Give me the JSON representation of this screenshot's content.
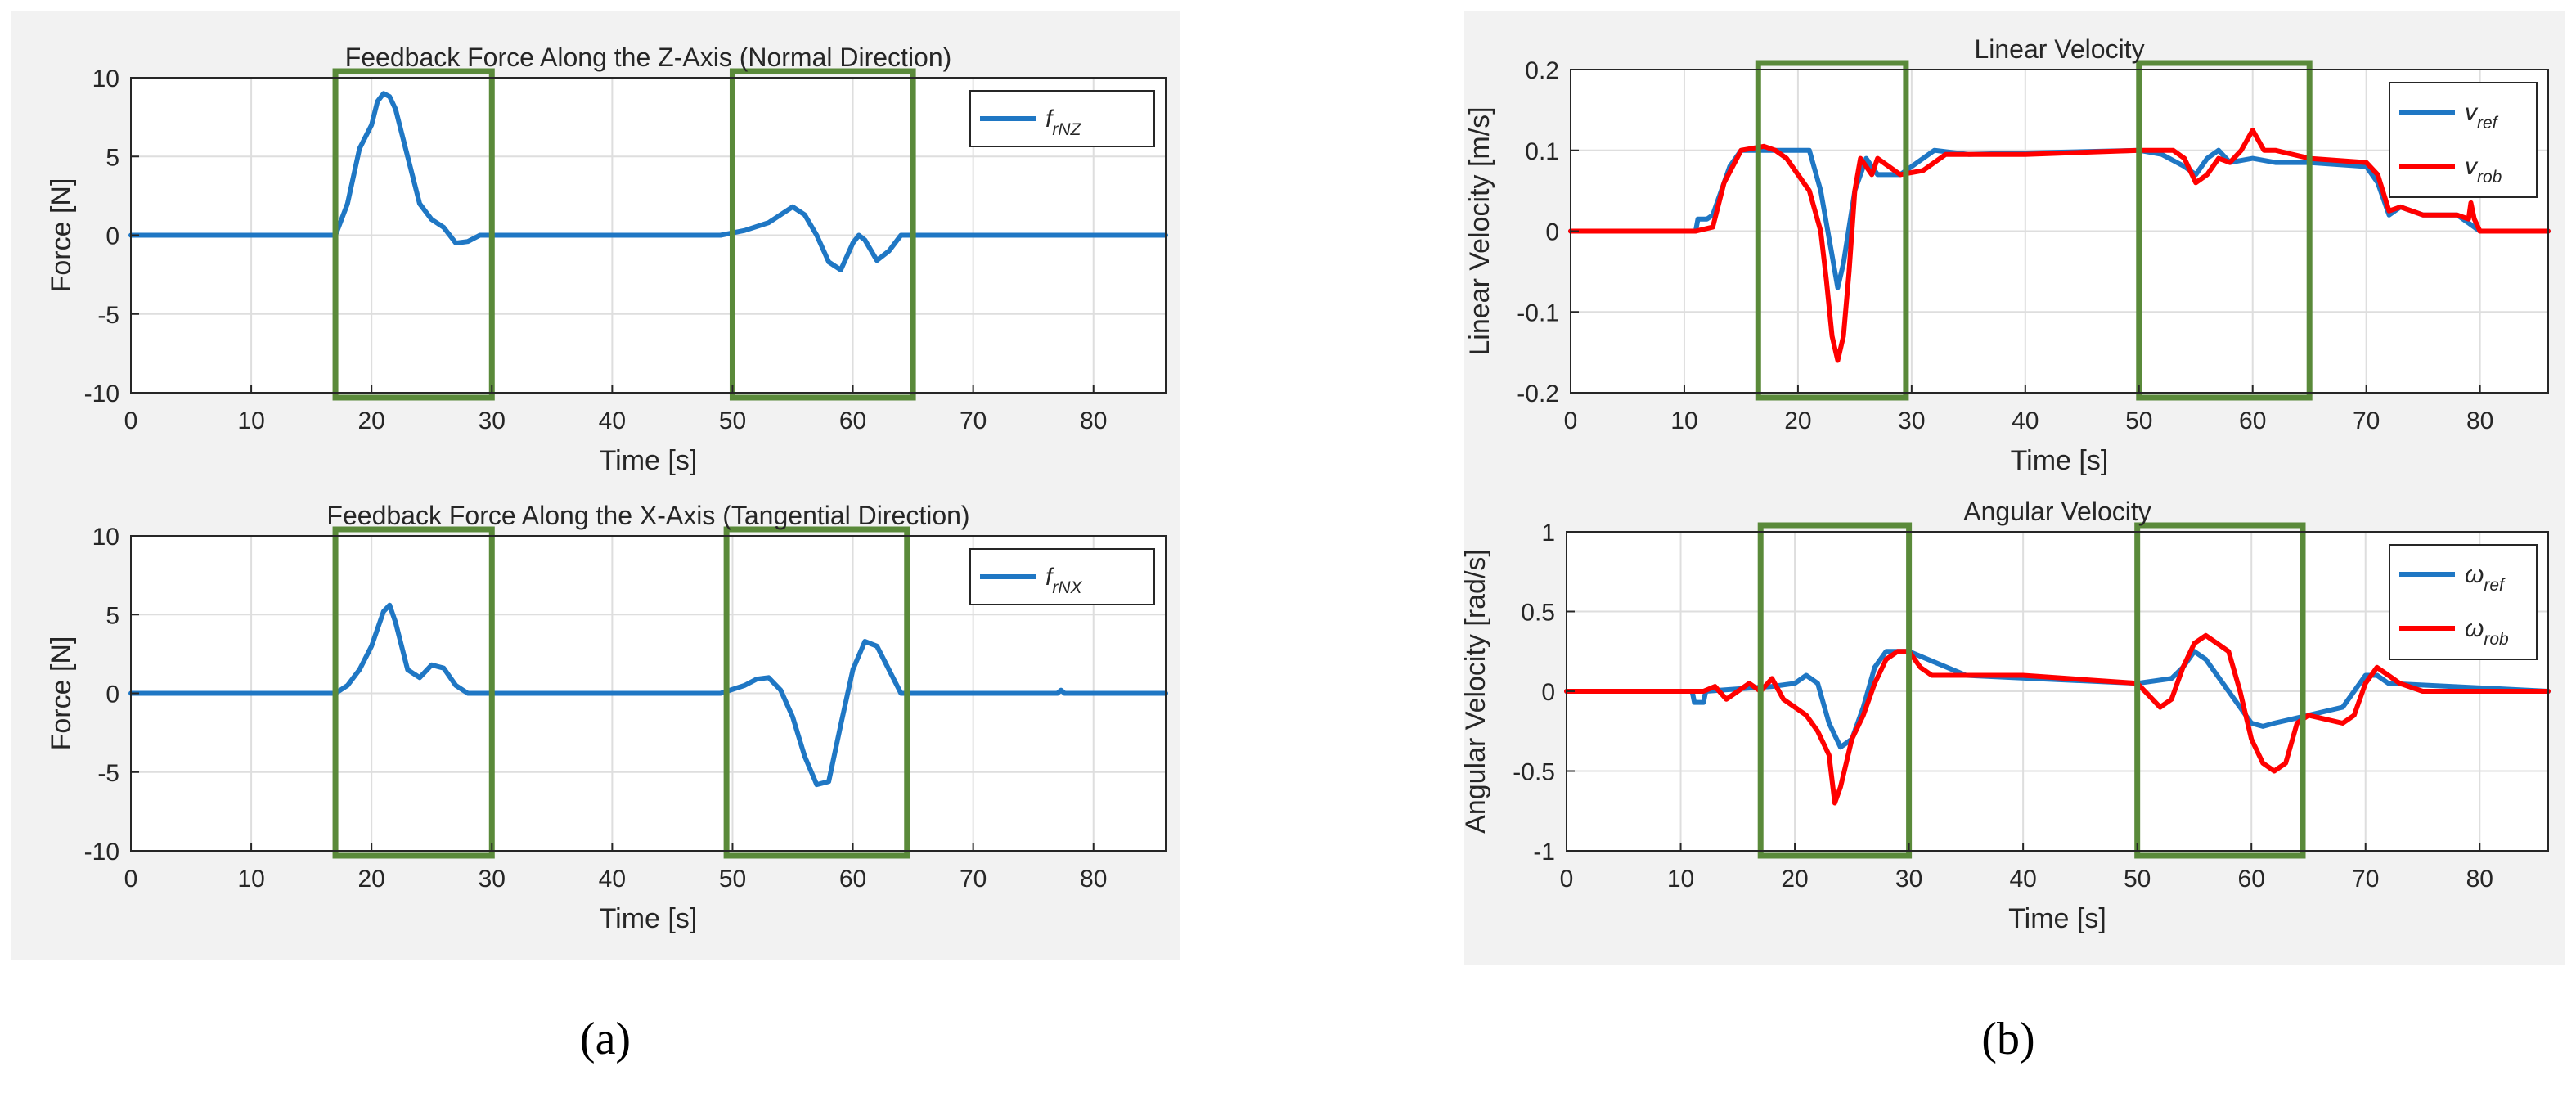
{
  "colors": {
    "blue": "#1f77c4",
    "red": "#ff0000",
    "green_box": "#5a8a3a",
    "panel_bg": "#f2f2f2",
    "grid": "#dedede"
  },
  "panel_labels": {
    "a": "(a)",
    "b": "(b)"
  },
  "chart_data": [
    {
      "id": "force_z",
      "type": "line",
      "title": "Feedback Force Along the Z-Axis (Normal Direction)",
      "xlabel": "Time [s]",
      "ylabel": "Force [N]",
      "xlim": [
        0,
        86
      ],
      "ylim": [
        -10,
        10
      ],
      "xticks": [
        0,
        10,
        20,
        30,
        40,
        50,
        60,
        70,
        80
      ],
      "yticks": [
        -10,
        -5,
        0,
        5,
        10
      ],
      "grid": true,
      "legend_position": "top-right",
      "highlight_boxes": [
        [
          17,
          30
        ],
        [
          50,
          65
        ]
      ],
      "series": [
        {
          "name": "f_rNZ",
          "legend_main": "f",
          "legend_sub": "rNZ",
          "color": "blue",
          "x": [
            0,
            17,
            18,
            19,
            20,
            20.5,
            21,
            21.5,
            22,
            23,
            24,
            25,
            26,
            27,
            28,
            29,
            30,
            49,
            51,
            53,
            55,
            56,
            57,
            58,
            59,
            60,
            60.5,
            61,
            62,
            63,
            64,
            65,
            86
          ],
          "y": [
            0,
            0,
            2,
            5.5,
            7,
            8.5,
            9,
            8.8,
            8,
            5,
            2,
            1,
            0.5,
            -0.5,
            -0.4,
            0,
            0,
            0,
            0.3,
            0.8,
            1.8,
            1.3,
            0,
            -1.7,
            -2.2,
            -0.5,
            0,
            -0.3,
            -1.6,
            -1,
            0,
            0,
            0
          ]
        }
      ]
    },
    {
      "id": "force_x",
      "type": "line",
      "title": "Feedback Force Along the X-Axis (Tangential Direction)",
      "xlabel": "Time [s]",
      "ylabel": "Force [N]",
      "xlim": [
        0,
        86
      ],
      "ylim": [
        -10,
        10
      ],
      "xticks": [
        0,
        10,
        20,
        30,
        40,
        50,
        60,
        70,
        80
      ],
      "yticks": [
        -10,
        -5,
        0,
        5,
        10
      ],
      "grid": true,
      "legend_position": "top-right",
      "highlight_boxes": [
        [
          17,
          30
        ],
        [
          49.5,
          64.5
        ]
      ],
      "series": [
        {
          "name": "f_rNX",
          "legend_main": "f",
          "legend_sub": "rNX",
          "color": "blue",
          "x": [
            0,
            17,
            18,
            19,
            20,
            21,
            21.5,
            22,
            23,
            24,
            25,
            26,
            27,
            28,
            29,
            49,
            51,
            52,
            53,
            54,
            55,
            56,
            57,
            58,
            59,
            60,
            61,
            62,
            63,
            64,
            65,
            77,
            77.3,
            77.6,
            86
          ],
          "y": [
            0,
            0,
            0.5,
            1.5,
            3,
            5.2,
            5.6,
            4.5,
            1.5,
            1,
            1.8,
            1.6,
            0.5,
            0,
            0,
            0,
            0.5,
            0.9,
            1,
            0.2,
            -1.5,
            -4,
            -5.8,
            -5.6,
            -2,
            1.5,
            3.3,
            3,
            1.5,
            0,
            0,
            0,
            0.2,
            0,
            0
          ]
        }
      ]
    },
    {
      "id": "linear_velocity",
      "type": "line",
      "title": "Linear Velocity",
      "xlabel": "Time [s]",
      "ylabel": "Linear Velocity [m/s]",
      "xlim": [
        0,
        86
      ],
      "ylim": [
        -0.2,
        0.2
      ],
      "xticks": [
        0,
        10,
        20,
        30,
        40,
        50,
        60,
        70,
        80
      ],
      "yticks": [
        -0.2,
        -0.1,
        0,
        0.1,
        0.2
      ],
      "grid": true,
      "legend_position": "top-right",
      "highlight_boxes": [
        [
          16.5,
          29.5
        ],
        [
          50,
          65
        ]
      ],
      "series": [
        {
          "name": "v_ref",
          "legend_main": "v",
          "legend_sub": "ref",
          "color": "blue",
          "x": [
            0,
            11,
            11.2,
            12,
            12.5,
            14,
            15,
            20,
            21,
            22,
            23,
            23.5,
            24,
            25,
            26,
            27,
            28,
            29,
            32,
            35,
            50,
            52,
            54,
            55,
            56,
            57,
            58,
            60,
            62,
            65,
            70,
            71,
            72,
            73,
            75,
            77,
            78,
            79,
            80,
            86
          ],
          "y": [
            0,
            0,
            0.015,
            0.015,
            0.02,
            0.08,
            0.1,
            0.1,
            0.1,
            0.05,
            -0.03,
            -0.07,
            -0.04,
            0.05,
            0.09,
            0.07,
            0.07,
            0.07,
            0.1,
            0.095,
            0.1,
            0.095,
            0.08,
            0.07,
            0.09,
            0.1,
            0.085,
            0.09,
            0.085,
            0.085,
            0.08,
            0.06,
            0.02,
            0.03,
            0.02,
            0.02,
            0.02,
            0.01,
            0,
            0
          ]
        },
        {
          "name": "v_rob",
          "legend_main": "v",
          "legend_sub": "rob",
          "color": "red",
          "x": [
            0,
            11,
            12.5,
            13.5,
            15,
            17,
            18,
            19,
            20,
            21,
            22,
            22.5,
            23,
            23.5,
            24,
            24.5,
            25,
            25.5,
            26,
            26.5,
            27,
            28,
            29,
            31,
            33,
            40,
            50,
            53,
            54,
            55,
            56,
            57,
            58,
            59,
            60,
            61,
            62,
            65,
            70,
            71,
            72,
            73,
            74,
            75,
            76,
            78,
            79,
            79.2,
            79.5,
            80,
            86
          ],
          "y": [
            0,
            0,
            0.005,
            0.06,
            0.1,
            0.105,
            0.1,
            0.09,
            0.07,
            0.05,
            0,
            -0.06,
            -0.13,
            -0.16,
            -0.13,
            -0.05,
            0.05,
            0.09,
            0.08,
            0.07,
            0.09,
            0.08,
            0.07,
            0.075,
            0.095,
            0.095,
            0.1,
            0.1,
            0.09,
            0.06,
            0.07,
            0.09,
            0.085,
            0.1,
            0.125,
            0.1,
            0.1,
            0.09,
            0.085,
            0.07,
            0.025,
            0.03,
            0.025,
            0.02,
            0.02,
            0.02,
            0.015,
            0.035,
            0.015,
            0,
            0
          ]
        }
      ]
    },
    {
      "id": "angular_velocity",
      "type": "line",
      "title": "Angular Velocity",
      "xlabel": "Time [s]",
      "ylabel": "Angular Velocity [rad/s]",
      "xlim": [
        0,
        86
      ],
      "ylim": [
        -1,
        1
      ],
      "xticks": [
        0,
        10,
        20,
        30,
        40,
        50,
        60,
        70,
        80
      ],
      "yticks": [
        -1,
        -0.5,
        0,
        0.5,
        1
      ],
      "grid": true,
      "legend_position": "top-right",
      "highlight_boxes": [
        [
          17,
          30
        ],
        [
          50,
          64.5
        ]
      ],
      "series": [
        {
          "name": "omega_ref",
          "legend_main": "ω",
          "legend_sub": "ref",
          "color": "blue",
          "x": [
            0,
            11,
            11.2,
            12,
            12.2,
            18,
            20,
            21,
            22,
            23,
            24,
            25,
            26,
            27,
            28,
            29,
            30,
            35,
            50,
            53,
            54,
            55,
            56,
            57,
            58,
            60,
            61,
            62,
            65,
            68,
            69,
            70,
            71,
            72,
            86
          ],
          "y": [
            0,
            0,
            -0.07,
            -0.07,
            0,
            0.03,
            0.05,
            0.1,
            0.05,
            -0.2,
            -0.35,
            -0.3,
            -0.1,
            0.15,
            0.25,
            0.25,
            0.25,
            0.1,
            0.05,
            0.08,
            0.15,
            0.25,
            0.2,
            0.1,
            0,
            -0.2,
            -0.22,
            -0.2,
            -0.15,
            -0.1,
            0,
            0.1,
            0.1,
            0.05,
            0
          ]
        },
        {
          "name": "omega_rob",
          "legend_main": "ω",
          "legend_sub": "rob",
          "color": "red",
          "x": [
            0,
            12,
            13,
            14,
            15,
            16,
            17,
            18,
            19,
            20,
            21,
            22,
            23,
            23.5,
            24,
            24.5,
            25,
            26,
            27,
            28,
            29,
            30,
            31,
            32,
            40,
            50,
            52,
            53,
            54,
            55,
            56,
            57,
            58,
            59,
            60,
            61,
            62,
            63,
            64,
            65,
            68,
            69,
            70,
            71,
            72,
            73,
            75,
            78,
            86
          ],
          "y": [
            0,
            0,
            0.03,
            -0.05,
            0,
            0.05,
            0,
            0.08,
            -0.05,
            -0.1,
            -0.15,
            -0.25,
            -0.4,
            -0.7,
            -0.6,
            -0.45,
            -0.3,
            -0.15,
            0.05,
            0.2,
            0.25,
            0.25,
            0.15,
            0.1,
            0.1,
            0.05,
            -0.1,
            -0.05,
            0.15,
            0.3,
            0.35,
            0.3,
            0.25,
            0,
            -0.3,
            -0.45,
            -0.5,
            -0.45,
            -0.2,
            -0.15,
            -0.2,
            -0.15,
            0.05,
            0.15,
            0.1,
            0.05,
            0,
            0,
            0
          ]
        }
      ]
    }
  ]
}
